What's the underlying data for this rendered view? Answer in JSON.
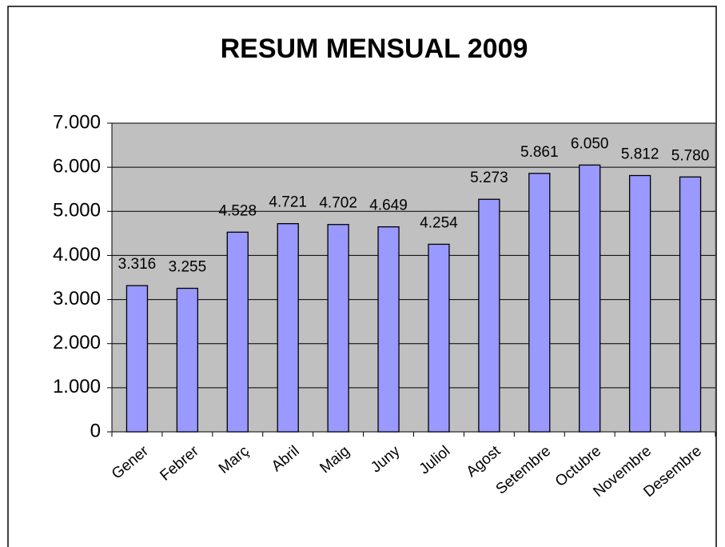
{
  "chart_data": {
    "type": "bar",
    "title": "RESUM MENSUAL 2009",
    "categories": [
      "Gener",
      "Febrer",
      "Març",
      "Abril",
      "Maig",
      "Juny",
      "Juliol",
      "Agost",
      "Setembre",
      "Octubre",
      "Novembre",
      "Desembre"
    ],
    "values": [
      3316,
      3255,
      4528,
      4721,
      4702,
      4649,
      4254,
      5273,
      5861,
      6050,
      5812,
      5780
    ],
    "value_labels": [
      "3.316",
      "3.255",
      "4.528",
      "4.721",
      "4.702",
      "4.649",
      "4.254",
      "5.273",
      "5.861",
      "6.050",
      "5.812",
      "5.780"
    ],
    "color": "#9999ff",
    "ylim": [
      0,
      7000
    ],
    "yticks": [
      0,
      {
        "value": 1000,
        "label": "1.000"
      },
      {
        "value": 2000,
        "label": "2.000"
      },
      {
        "value": 3000,
        "label": "3.000"
      },
      {
        "value": 4000,
        "label": "4.000"
      },
      {
        "value": 5000,
        "label": "5.000"
      },
      {
        "value": 6000,
        "label": "6.000"
      },
      {
        "value": 7000,
        "label": "7.000"
      }
    ],
    "grid": true
  }
}
